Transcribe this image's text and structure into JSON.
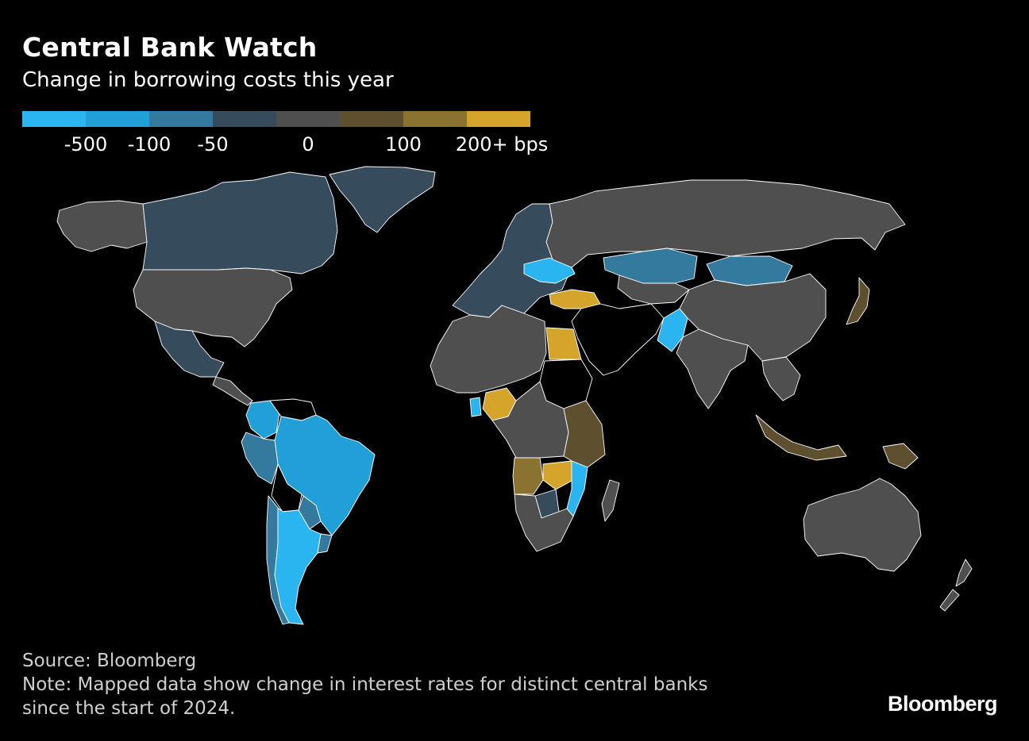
{
  "header": {
    "title": "Central Bank Watch",
    "subtitle": "Change in borrowing costs this year"
  },
  "legend": {
    "colors": [
      "#2ab4f0",
      "#21a0d8",
      "#347a9e",
      "#364b5c",
      "#4f4f4f",
      "#5e4f2f",
      "#8a7330",
      "#d4a52a"
    ],
    "labels": [
      "-500",
      "-100",
      "-50",
      "0",
      "100",
      "200+ bps"
    ]
  },
  "map": {
    "categories": {
      "cut_500": "#2ab4f0",
      "cut_100": "#21a0d8",
      "cut_50": "#347a9e",
      "cut_small": "#364b5c",
      "unchanged": "#4f4f4f",
      "hike_small": "#5e4f2f",
      "hike_100": "#8a7330",
      "hike_200": "#d4a52a",
      "no_data": "#000000"
    },
    "regions": [
      {
        "name": "Canada",
        "category": "cut_small"
      },
      {
        "name": "Greenland",
        "category": "cut_small"
      },
      {
        "name": "Alaska",
        "category": "unchanged"
      },
      {
        "name": "United States",
        "category": "unchanged"
      },
      {
        "name": "Mexico",
        "category": "cut_small"
      },
      {
        "name": "Central America",
        "category": "unchanged"
      },
      {
        "name": "Colombia",
        "category": "cut_100"
      },
      {
        "name": "Venezuela",
        "category": "no_data"
      },
      {
        "name": "Peru",
        "category": "cut_50"
      },
      {
        "name": "Brazil",
        "category": "cut_100"
      },
      {
        "name": "Bolivia",
        "category": "no_data"
      },
      {
        "name": "Paraguay",
        "category": "cut_50"
      },
      {
        "name": "Chile",
        "category": "cut_50"
      },
      {
        "name": "Argentina",
        "category": "cut_500"
      },
      {
        "name": "Uruguay",
        "category": "cut_50"
      },
      {
        "name": "Europe",
        "category": "cut_small"
      },
      {
        "name": "Ukraine",
        "category": "cut_500"
      },
      {
        "name": "Russia",
        "category": "unchanged"
      },
      {
        "name": "Turkey",
        "category": "hike_200"
      },
      {
        "name": "North Africa",
        "category": "unchanged"
      },
      {
        "name": "Egypt",
        "category": "hike_200"
      },
      {
        "name": "Nigeria",
        "category": "hike_200"
      },
      {
        "name": "Ghana",
        "category": "cut_500"
      },
      {
        "name": "Sudan",
        "category": "no_data"
      },
      {
        "name": "Central Africa",
        "category": "unchanged"
      },
      {
        "name": "East Africa",
        "category": "hike_small"
      },
      {
        "name": "Angola",
        "category": "hike_100"
      },
      {
        "name": "Zambia",
        "category": "hike_200"
      },
      {
        "name": "Mozambique",
        "category": "cut_500"
      },
      {
        "name": "Southern Africa",
        "category": "unchanged"
      },
      {
        "name": "Botswana",
        "category": "cut_small"
      },
      {
        "name": "Madagascar",
        "category": "unchanged"
      },
      {
        "name": "Middle East",
        "category": "no_data"
      },
      {
        "name": "Kazakhstan",
        "category": "cut_50"
      },
      {
        "name": "Mongolia",
        "category": "cut_50"
      },
      {
        "name": "Central Asia",
        "category": "unchanged"
      },
      {
        "name": "Pakistan",
        "category": "cut_500"
      },
      {
        "name": "India",
        "category": "unchanged"
      },
      {
        "name": "China",
        "category": "unchanged"
      },
      {
        "name": "Japan",
        "category": "hike_small"
      },
      {
        "name": "Southeast Asia",
        "category": "unchanged"
      },
      {
        "name": "Indonesia",
        "category": "hike_small"
      },
      {
        "name": "Papua New Guinea",
        "category": "hike_small"
      },
      {
        "name": "Australia",
        "category": "unchanged"
      },
      {
        "name": "New Zealand",
        "category": "unchanged"
      }
    ]
  },
  "footer": {
    "source": "Source: Bloomberg",
    "note_line1": "Note: Mapped data show change in interest rates for distinct central banks",
    "note_line2": "since the start of 2024.",
    "brand": "Bloomberg"
  }
}
